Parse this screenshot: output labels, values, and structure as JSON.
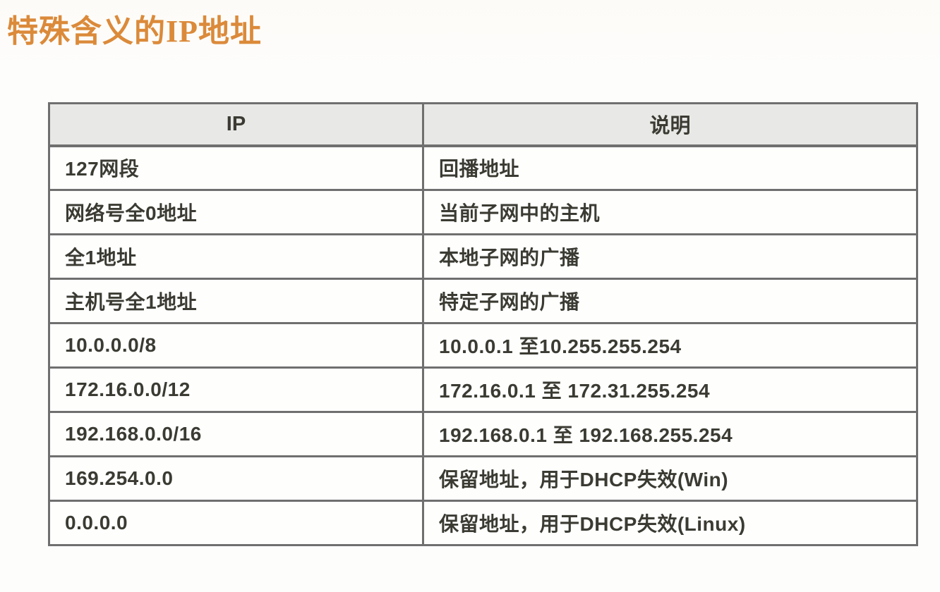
{
  "page": {
    "title": "特殊含义的IP地址"
  },
  "table": {
    "columns": [
      "IP",
      "说明"
    ],
    "rows": [
      [
        "127网段",
        "回播地址"
      ],
      [
        "网络号全0地址",
        "当前子网中的主机"
      ],
      [
        "全1地址",
        "本地子网的广播"
      ],
      [
        "主机号全1地址",
        "特定子网的广播"
      ],
      [
        "10.0.0.0/8",
        "10.0.0.1 至10.255.255.254"
      ],
      [
        "172.16.0.0/12",
        "172.16.0.1 至 172.31.255.254"
      ],
      [
        "192.168.0.0/16",
        "192.168.0.1 至 192.168.255.254"
      ],
      [
        "169.254.0.0",
        "保留地址，用于DHCP失效(Win)"
      ],
      [
        "0.0.0.0",
        "保留地址，用于DHCP失效(Linux)"
      ]
    ]
  },
  "colors": {
    "title_orange": "#db8a3a",
    "header_bg": "#e8e8e6",
    "border_gray": "#6f6f6f",
    "text_dark": "#3b3b33"
  }
}
